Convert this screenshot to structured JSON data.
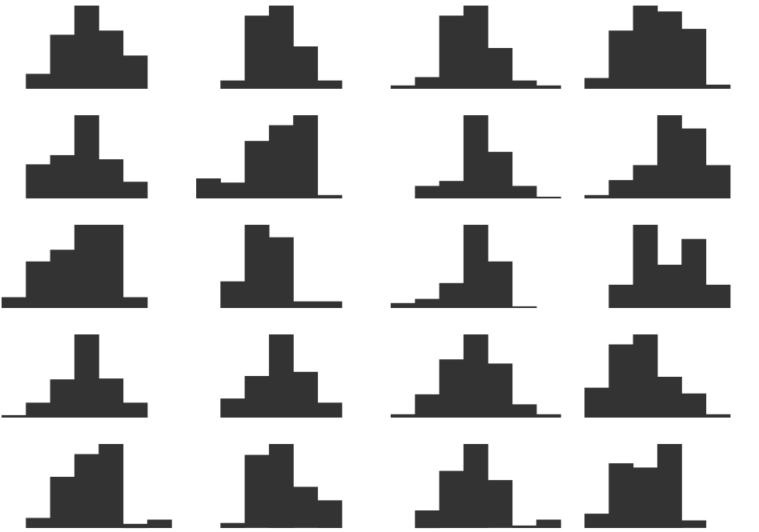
{
  "chart_data": {
    "type": "bar",
    "title": "",
    "xlabel": "",
    "ylabel": "",
    "grid": false,
    "legend": "none",
    "axes_visible": false,
    "bar_color": "#333333",
    "bin_count": 7,
    "panels": [
      {
        "name": "",
        "values": [
          0,
          18,
          65,
          100,
          70,
          40,
          0
        ]
      },
      {
        "name": "",
        "values": [
          0,
          10,
          88,
          100,
          51,
          10,
          0
        ]
      },
      {
        "name": "",
        "values": [
          4,
          14,
          88,
          100,
          49,
          10,
          4
        ]
      },
      {
        "name": "",
        "values": [
          13,
          70,
          100,
          93,
          72,
          5,
          0
        ]
      },
      {
        "name": "",
        "values": [
          0,
          41,
          52,
          100,
          47,
          20,
          0
        ]
      },
      {
        "name": "",
        "values": [
          24,
          19,
          69,
          88,
          100,
          4,
          0
        ]
      },
      {
        "name": "",
        "values": [
          0,
          15,
          21,
          100,
          56,
          15,
          2
        ]
      },
      {
        "name": "",
        "values": [
          4,
          22,
          40,
          100,
          84,
          40,
          0
        ]
      },
      {
        "name": "",
        "values": [
          13,
          56,
          70,
          100,
          100,
          13,
          0
        ]
      },
      {
        "name": "",
        "values": [
          0,
          32,
          100,
          85,
          8,
          8,
          0
        ]
      },
      {
        "name": "",
        "values": [
          6,
          11,
          30,
          100,
          56,
          2,
          0
        ]
      },
      {
        "name": "",
        "values": [
          0,
          28,
          100,
          52,
          83,
          28,
          0
        ]
      },
      {
        "name": "",
        "values": [
          3,
          18,
          46,
          100,
          47,
          18,
          0
        ]
      },
      {
        "name": "",
        "values": [
          0,
          23,
          50,
          100,
          55,
          18,
          0
        ]
      },
      {
        "name": "",
        "values": [
          4,
          28,
          70,
          100,
          65,
          16,
          4
        ]
      },
      {
        "name": "",
        "values": [
          36,
          88,
          100,
          49,
          29,
          4,
          0
        ]
      },
      {
        "name": "",
        "values": [
          0,
          12,
          61,
          88,
          100,
          5,
          10
        ]
      },
      {
        "name": "",
        "values": [
          0,
          6,
          87,
          100,
          49,
          33,
          0
        ]
      },
      {
        "name": "",
        "values": [
          0,
          21,
          68,
          100,
          57,
          3,
          10
        ]
      },
      {
        "name": "",
        "values": [
          17,
          77,
          72,
          100,
          9,
          0,
          0
        ]
      }
    ]
  }
}
